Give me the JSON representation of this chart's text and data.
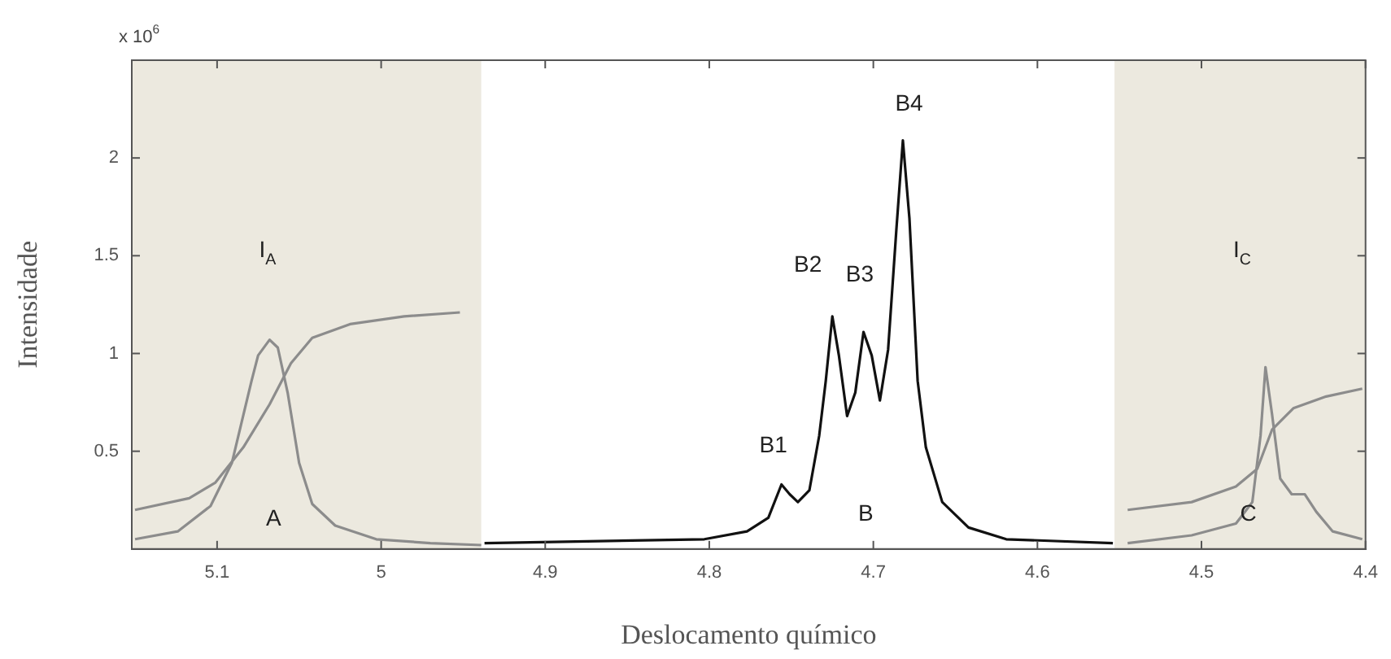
{
  "chart_data": {
    "type": "line",
    "xlabel": "Deslocamento químico",
    "ylabel": "Intensidade",
    "xlim": [
      5.152,
      4.4
    ],
    "xticks": [
      5.1,
      5,
      4.9,
      4.8,
      4.7,
      4.6,
      4.5,
      4.4
    ],
    "ylim": [
      0,
      2.5
    ],
    "yticks": [
      0.5,
      1,
      1.5,
      2
    ],
    "grid": false,
    "legend": false,
    "marker": "none",
    "line_style": "solid",
    "bands": [
      {
        "axis": "x",
        "from": 5.152,
        "to": 4.939,
        "color": "#ece9df"
      },
      {
        "axis": "x",
        "from": 4.553,
        "to": 4.4,
        "color": "#ece9df"
      }
    ],
    "series": [
      {
        "color": "#8c8c8c",
        "x": [
          5.15,
          5.124,
          5.104,
          5.091,
          5.079,
          5.075,
          5.068,
          5.063,
          5.057,
          5.05,
          5.042,
          5.028,
          5.003,
          4.97,
          4.939
        ],
        "values": [
          0.05,
          0.09,
          0.22,
          0.44,
          0.86,
          0.99,
          1.07,
          1.03,
          0.8,
          0.44,
          0.23,
          0.12,
          0.05,
          0.03,
          0.02
        ]
      },
      {
        "color": "#8c8c8c",
        "x": [
          5.15,
          5.117,
          5.101,
          5.084,
          5.068,
          5.055,
          5.042,
          5.019,
          4.986,
          4.952
        ],
        "values": [
          0.2,
          0.26,
          0.34,
          0.52,
          0.74,
          0.95,
          1.08,
          1.15,
          1.19,
          1.21
        ]
      },
      {
        "color": "#111111",
        "x": [
          4.937,
          4.803,
          4.777,
          4.764,
          4.756,
          4.751,
          4.746,
          4.739,
          4.733,
          4.729,
          4.725,
          4.721,
          4.716,
          4.711,
          4.706,
          4.701,
          4.696,
          4.691,
          4.686,
          4.682,
          4.678,
          4.673,
          4.668,
          4.658,
          4.642,
          4.619,
          4.554
        ],
        "values": [
          0.03,
          0.05,
          0.09,
          0.16,
          0.33,
          0.28,
          0.24,
          0.3,
          0.58,
          0.86,
          1.19,
          0.99,
          0.68,
          0.8,
          1.11,
          0.99,
          0.76,
          1.02,
          1.63,
          2.09,
          1.69,
          0.86,
          0.52,
          0.24,
          0.11,
          0.05,
          0.03
        ]
      },
      {
        "color": "#8c8c8c",
        "x": [
          4.545,
          4.506,
          4.479,
          4.469,
          4.464,
          4.461,
          4.457,
          4.452,
          4.445,
          4.437,
          4.43,
          4.42,
          4.402
        ],
        "values": [
          0.03,
          0.07,
          0.13,
          0.24,
          0.58,
          0.93,
          0.69,
          0.36,
          0.28,
          0.28,
          0.19,
          0.09,
          0.05
        ]
      },
      {
        "color": "#8c8c8c",
        "x": [
          4.545,
          4.506,
          4.479,
          4.466,
          4.457,
          4.444,
          4.424,
          4.402
        ],
        "values": [
          0.2,
          0.24,
          0.32,
          0.41,
          0.61,
          0.72,
          0.78,
          0.82
        ]
      }
    ],
    "annotations": [
      "x 10$^{6}$",
      "I$_{A}$",
      "A",
      "B1",
      "B2",
      "B3",
      "B4",
      "B",
      "I$_{C}$",
      "C"
    ]
  }
}
